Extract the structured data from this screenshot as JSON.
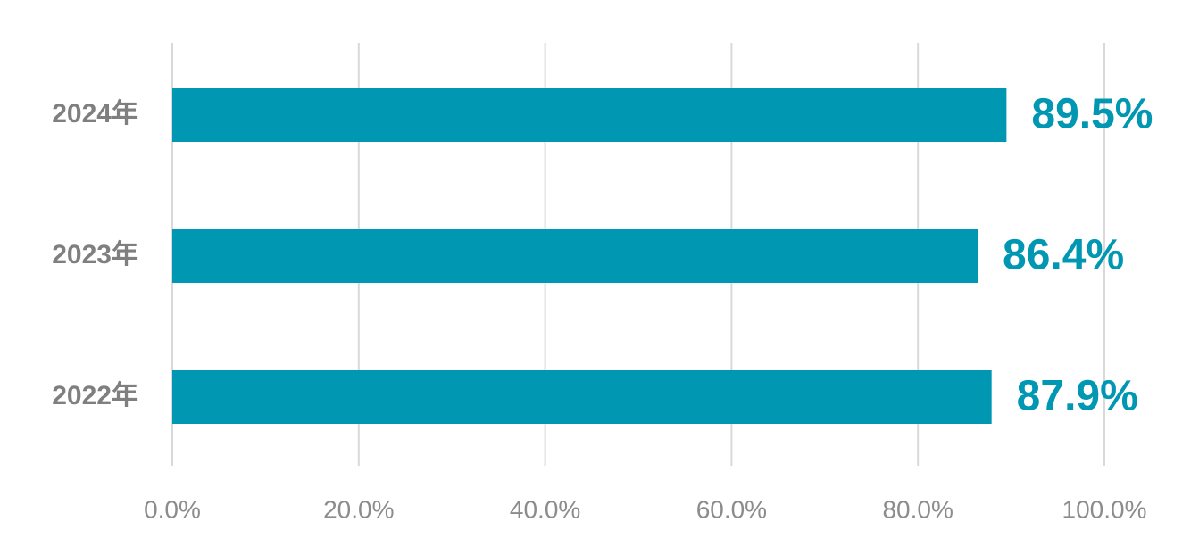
{
  "chart_data": {
    "type": "bar",
    "orientation": "horizontal",
    "categories": [
      "2024年",
      "2023年",
      "2022年"
    ],
    "values": [
      89.5,
      86.4,
      87.9
    ],
    "value_labels": [
      "89.5%",
      "86.4%",
      "87.9%"
    ],
    "color": "#0097b2",
    "xlim": [
      0,
      100
    ],
    "xticks": [
      {
        "value": 0,
        "label": "0.0%"
      },
      {
        "value": 20,
        "label": "20.0%"
      },
      {
        "value": 40,
        "label": "40.0%"
      },
      {
        "value": 60,
        "label": "60.0%"
      },
      {
        "value": 80,
        "label": "80.0%"
      },
      {
        "value": 100,
        "label": "100.0%"
      }
    ],
    "grid": true
  }
}
